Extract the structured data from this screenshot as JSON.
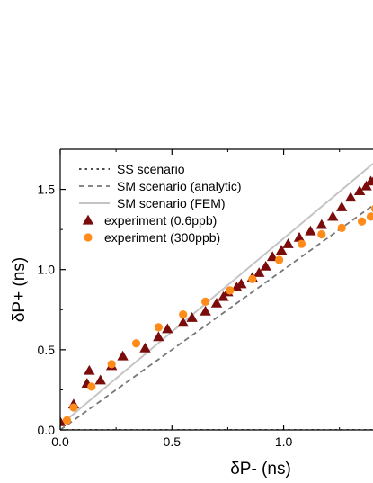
{
  "chart_data": {
    "type": "scatter",
    "xlabel": "δP- (ns)",
    "ylabel": "δP+ (ns)",
    "xlim": [
      0.0,
      1.4
    ],
    "ylim": [
      0.0,
      1.75
    ],
    "x_ticks": [
      "0.0",
      "0.5",
      "1.0"
    ],
    "y_ticks": [
      "0.0",
      "0.5",
      "1.0",
      "1.5"
    ],
    "legend_position": "top-left",
    "series": [
      {
        "name": "SS scenario",
        "kind": "line",
        "style": "dot",
        "color": "#333333",
        "x": [
          0.0,
          1.4
        ],
        "y": [
          0.0,
          0.0
        ]
      },
      {
        "name": "SM scenario (analytic)",
        "kind": "line",
        "style": "dash",
        "color": "#777777",
        "x": [
          0.0,
          1.4
        ],
        "y": [
          0.0,
          1.4
        ]
      },
      {
        "name": "SM scenario (FEM)",
        "kind": "line",
        "style": "solid",
        "color": "#c4c4c4",
        "x": [
          0.0,
          1.4
        ],
        "y": [
          0.03,
          1.66
        ]
      },
      {
        "name": "experiment (0.6ppb)",
        "kind": "marker",
        "marker": "triangle",
        "color": "#7a0c0c",
        "x": [
          0.0,
          0.06,
          0.12,
          0.13,
          0.18,
          0.23,
          0.28,
          0.38,
          0.44,
          0.48,
          0.55,
          0.59,
          0.65,
          0.7,
          0.73,
          0.75,
          0.79,
          0.81,
          0.86,
          0.89,
          0.92,
          0.95,
          0.99,
          1.02,
          1.07,
          1.12,
          1.17,
          1.22,
          1.26,
          1.3,
          1.34,
          1.37,
          1.39,
          1.41
        ],
        "y": [
          0.05,
          0.16,
          0.29,
          0.37,
          0.31,
          0.4,
          0.46,
          0.51,
          0.58,
          0.63,
          0.67,
          0.7,
          0.74,
          0.79,
          0.83,
          0.86,
          0.89,
          0.91,
          0.95,
          0.98,
          1.02,
          1.08,
          1.12,
          1.16,
          1.2,
          1.24,
          1.28,
          1.33,
          1.39,
          1.45,
          1.49,
          1.52,
          1.55,
          1.57
        ]
      },
      {
        "name": "experiment (300ppb)",
        "kind": "marker",
        "marker": "circle",
        "color": "#ff8c1a",
        "x": [
          0.03,
          0.06,
          0.14,
          0.23,
          0.34,
          0.44,
          0.55,
          0.65,
          0.76,
          0.86,
          0.98,
          1.08,
          1.17,
          1.26,
          1.35,
          1.39,
          1.41
        ],
        "y": [
          0.06,
          0.14,
          0.27,
          0.41,
          0.54,
          0.64,
          0.72,
          0.8,
          0.87,
          0.94,
          1.06,
          1.16,
          1.22,
          1.26,
          1.3,
          1.33,
          1.38
        ]
      }
    ]
  }
}
